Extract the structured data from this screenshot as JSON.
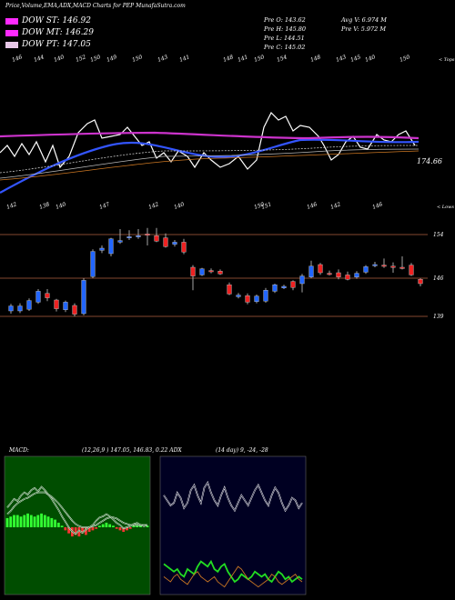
{
  "header": {
    "title": "Price,Volume,EMA,ADX,MACD Charts for PEP MunafaSutra.com"
  },
  "legend": [
    {
      "label": "DOW ST: 146.92",
      "color": "#ff2aff"
    },
    {
      "label": "DOW MT: 146.29",
      "color": "#ff2aff"
    },
    {
      "label": "DOW PT: 147.05",
      "color": "#e8c8e8"
    }
  ],
  "info": {
    "col1": [
      "Pre O: 143.62",
      "Pre H: 145.80",
      "Pre L: 144.51",
      "Pre C: 145.02"
    ],
    "col2": [
      "Avg V: 6.974 M",
      "Pre V: 5.972 M"
    ]
  },
  "top_panel": {
    "side_label": "< Tops",
    "top_ticks": [
      "146",
      "144",
      "140",
      "152",
      "150",
      "149",
      "150",
      "143",
      "141",
      "148",
      "141",
      "150",
      "154",
      "148",
      "143",
      "145",
      "140",
      "150"
    ],
    "bottom_side_label": "< Lows",
    "bottom_ticks": [
      "142",
      "138",
      "140",
      "147",
      "142",
      "140",
      "150",
      "151",
      "146",
      "142",
      "146"
    ],
    "price_label": "174.66"
  },
  "candle_panel": {
    "levels": [
      154,
      146,
      139
    ],
    "level_labels": [
      "154",
      "146",
      "139"
    ],
    "candles": [
      {
        "o": 140.0,
        "c": 140.9,
        "h": 141.3,
        "l": 139.5,
        "up": true
      },
      {
        "o": 140.0,
        "c": 140.9,
        "h": 141.4,
        "l": 139.6,
        "up": true
      },
      {
        "o": 140.3,
        "c": 141.9,
        "h": 142.3,
        "l": 140.0,
        "up": true
      },
      {
        "o": 141.6,
        "c": 143.6,
        "h": 144.0,
        "l": 141.3,
        "up": true
      },
      {
        "o": 143.2,
        "c": 142.4,
        "h": 144.0,
        "l": 141.8,
        "up": false
      },
      {
        "o": 142.0,
        "c": 140.4,
        "h": 142.2,
        "l": 139.9,
        "up": false
      },
      {
        "o": 140.2,
        "c": 141.6,
        "h": 141.9,
        "l": 139.8,
        "up": true
      },
      {
        "o": 141.0,
        "c": 139.4,
        "h": 141.4,
        "l": 139.0,
        "up": false
      },
      {
        "o": 139.5,
        "c": 145.6,
        "h": 146.0,
        "l": 139.2,
        "up": true
      },
      {
        "o": 146.3,
        "c": 150.9,
        "h": 151.3,
        "l": 146.0,
        "up": true
      },
      {
        "o": 151.1,
        "c": 151.5,
        "h": 152.0,
        "l": 150.6,
        "up": true
      },
      {
        "o": 150.5,
        "c": 153.2,
        "h": 153.4,
        "l": 150.0,
        "up": true
      },
      {
        "o": 152.6,
        "c": 152.9,
        "h": 155.0,
        "l": 152.3,
        "up": true
      },
      {
        "o": 153.4,
        "c": 153.6,
        "h": 154.8,
        "l": 153.0,
        "up": true
      },
      {
        "o": 153.6,
        "c": 153.8,
        "h": 155.0,
        "l": 153.2,
        "up": true
      },
      {
        "o": 153.9,
        "c": 154.1,
        "h": 155.2,
        "l": 152.0,
        "up": false
      },
      {
        "o": 153.8,
        "c": 152.8,
        "h": 155.2,
        "l": 152.6,
        "up": false
      },
      {
        "o": 153.4,
        "c": 151.8,
        "h": 154.2,
        "l": 151.6,
        "up": false
      },
      {
        "o": 152.2,
        "c": 152.6,
        "h": 153.0,
        "l": 151.8,
        "up": true
      },
      {
        "o": 152.6,
        "c": 150.8,
        "h": 153.2,
        "l": 150.4,
        "up": false
      },
      {
        "o": 148.0,
        "c": 146.4,
        "h": 148.4,
        "l": 143.8,
        "up": false
      },
      {
        "o": 146.6,
        "c": 147.7,
        "h": 147.9,
        "l": 146.4,
        "up": true
      },
      {
        "o": 147.2,
        "c": 147.4,
        "h": 147.8,
        "l": 146.9,
        "up": false
      },
      {
        "o": 147.3,
        "c": 146.8,
        "h": 147.6,
        "l": 146.6,
        "up": false
      },
      {
        "o": 144.8,
        "c": 143.1,
        "h": 145.2,
        "l": 142.9,
        "up": false
      },
      {
        "o": 142.6,
        "c": 142.9,
        "h": 143.3,
        "l": 142.3,
        "up": true
      },
      {
        "o": 142.8,
        "c": 141.6,
        "h": 143.2,
        "l": 141.2,
        "up": false
      },
      {
        "o": 141.7,
        "c": 142.7,
        "h": 143.0,
        "l": 141.4,
        "up": true
      },
      {
        "o": 141.8,
        "c": 143.8,
        "h": 144.2,
        "l": 141.5,
        "up": true
      },
      {
        "o": 143.6,
        "c": 144.8,
        "h": 145.0,
        "l": 143.3,
        "up": true
      },
      {
        "o": 144.2,
        "c": 144.5,
        "h": 144.8,
        "l": 144.0,
        "up": true
      },
      {
        "o": 144.3,
        "c": 145.4,
        "h": 145.6,
        "l": 143.8,
        "up": false
      },
      {
        "o": 145.0,
        "c": 146.4,
        "h": 146.8,
        "l": 143.4,
        "up": true
      },
      {
        "o": 146.2,
        "c": 148.2,
        "h": 149.2,
        "l": 146.0,
        "up": true
      },
      {
        "o": 148.5,
        "c": 147.0,
        "h": 148.8,
        "l": 146.6,
        "up": false
      },
      {
        "o": 146.8,
        "c": 146.9,
        "h": 147.4,
        "l": 146.5,
        "up": false
      },
      {
        "o": 147.0,
        "c": 146.2,
        "h": 147.6,
        "l": 145.8,
        "up": false
      },
      {
        "o": 146.6,
        "c": 145.8,
        "h": 147.2,
        "l": 145.6,
        "up": false
      },
      {
        "o": 146.2,
        "c": 146.9,
        "h": 147.3,
        "l": 145.9,
        "up": true
      },
      {
        "o": 147.1,
        "c": 148.1,
        "h": 148.4,
        "l": 146.8,
        "up": true
      },
      {
        "o": 148.3,
        "c": 148.5,
        "h": 149.0,
        "l": 148.0,
        "up": true
      },
      {
        "o": 148.4,
        "c": 148.4,
        "h": 149.6,
        "l": 147.9,
        "up": false
      },
      {
        "o": 148.2,
        "c": 148.0,
        "h": 148.9,
        "l": 147.0,
        "up": false
      },
      {
        "o": 148.0,
        "c": 147.9,
        "h": 150.0,
        "l": 147.6,
        "up": false
      },
      {
        "o": 148.4,
        "c": 146.6,
        "h": 148.8,
        "l": 146.4,
        "up": false
      },
      {
        "o": 145.8,
        "c": 145.0,
        "h": 146.0,
        "l": 144.5,
        "up": false
      }
    ]
  },
  "macd_panel": {
    "title": "MACD:",
    "values": "(12,26,9 ) 147.05, 146.83, 0.22 ADX",
    "hist": [
      0.6,
      0.7,
      0.8,
      0.8,
      0.7,
      0.8,
      0.9,
      0.8,
      0.7,
      0.8,
      0.9,
      0.8,
      0.7,
      0.6,
      0.5,
      0.3,
      0.1,
      -0.2,
      -0.4,
      -0.6,
      -0.5,
      -0.6,
      -0.4,
      -0.5,
      -0.3,
      -0.2,
      -0.1,
      0.1,
      0.2,
      0.3,
      0.2,
      0.1,
      -0.1,
      -0.2,
      -0.3,
      -0.2,
      -0.1,
      0.1,
      0.2,
      0.1,
      0.0,
      0.1
    ],
    "macd": [
      1.8,
      2.2,
      2.6,
      2.4,
      2.9,
      3.2,
      3.0,
      3.4,
      3.6,
      3.3,
      3.7,
      3.4,
      3.0,
      2.6,
      2.1,
      1.6,
      1.0,
      0.5,
      0.0,
      -0.4,
      -0.6,
      -0.3,
      -0.5,
      -0.2,
      0.0,
      0.2,
      0.6,
      0.9,
      1.0,
      1.2,
      1.0,
      0.7,
      0.4,
      0.2,
      -0.1,
      0.0,
      0.1,
      0.3,
      0.4,
      0.2,
      0.1,
      0.2
    ],
    "signal": [
      1.2,
      1.5,
      1.9,
      2.2,
      2.4,
      2.6,
      2.7,
      2.9,
      3.1,
      3.2,
      3.2,
      3.2,
      3.0,
      2.8,
      2.5,
      2.2,
      1.8,
      1.4,
      1.0,
      0.6,
      0.3,
      0.1,
      0.0,
      0.0,
      0.0,
      0.1,
      0.2,
      0.4,
      0.6,
      0.8,
      0.9,
      0.9,
      0.8,
      0.6,
      0.4,
      0.3,
      0.2,
      0.2,
      0.2,
      0.2,
      0.2,
      0.2
    ]
  },
  "adx_panel": {
    "params": "(14 day) 9, -24, -28",
    "white": [
      78,
      74,
      70,
      72,
      80,
      76,
      68,
      72,
      82,
      86,
      78,
      72,
      84,
      88,
      80,
      74,
      70,
      78,
      84,
      76,
      70,
      66,
      72,
      78,
      74,
      70,
      76,
      82,
      86,
      80,
      74,
      70,
      78,
      84,
      80,
      72,
      66,
      70,
      76,
      74,
      68,
      72
    ],
    "green": [
      24,
      22,
      20,
      18,
      20,
      16,
      14,
      20,
      18,
      16,
      22,
      26,
      24,
      22,
      26,
      20,
      18,
      22,
      24,
      18,
      14,
      10,
      12,
      16,
      14,
      12,
      14,
      18,
      16,
      14,
      16,
      12,
      10,
      14,
      18,
      16,
      12,
      14,
      10,
      12,
      14,
      12
    ],
    "orange": [
      14,
      12,
      10,
      14,
      16,
      12,
      10,
      8,
      12,
      16,
      18,
      14,
      12,
      10,
      12,
      14,
      10,
      8,
      6,
      10,
      14,
      18,
      22,
      20,
      16,
      12,
      10,
      8,
      6,
      8,
      10,
      12,
      16,
      14,
      10,
      8,
      10,
      12,
      14,
      16,
      12,
      10
    ]
  }
}
